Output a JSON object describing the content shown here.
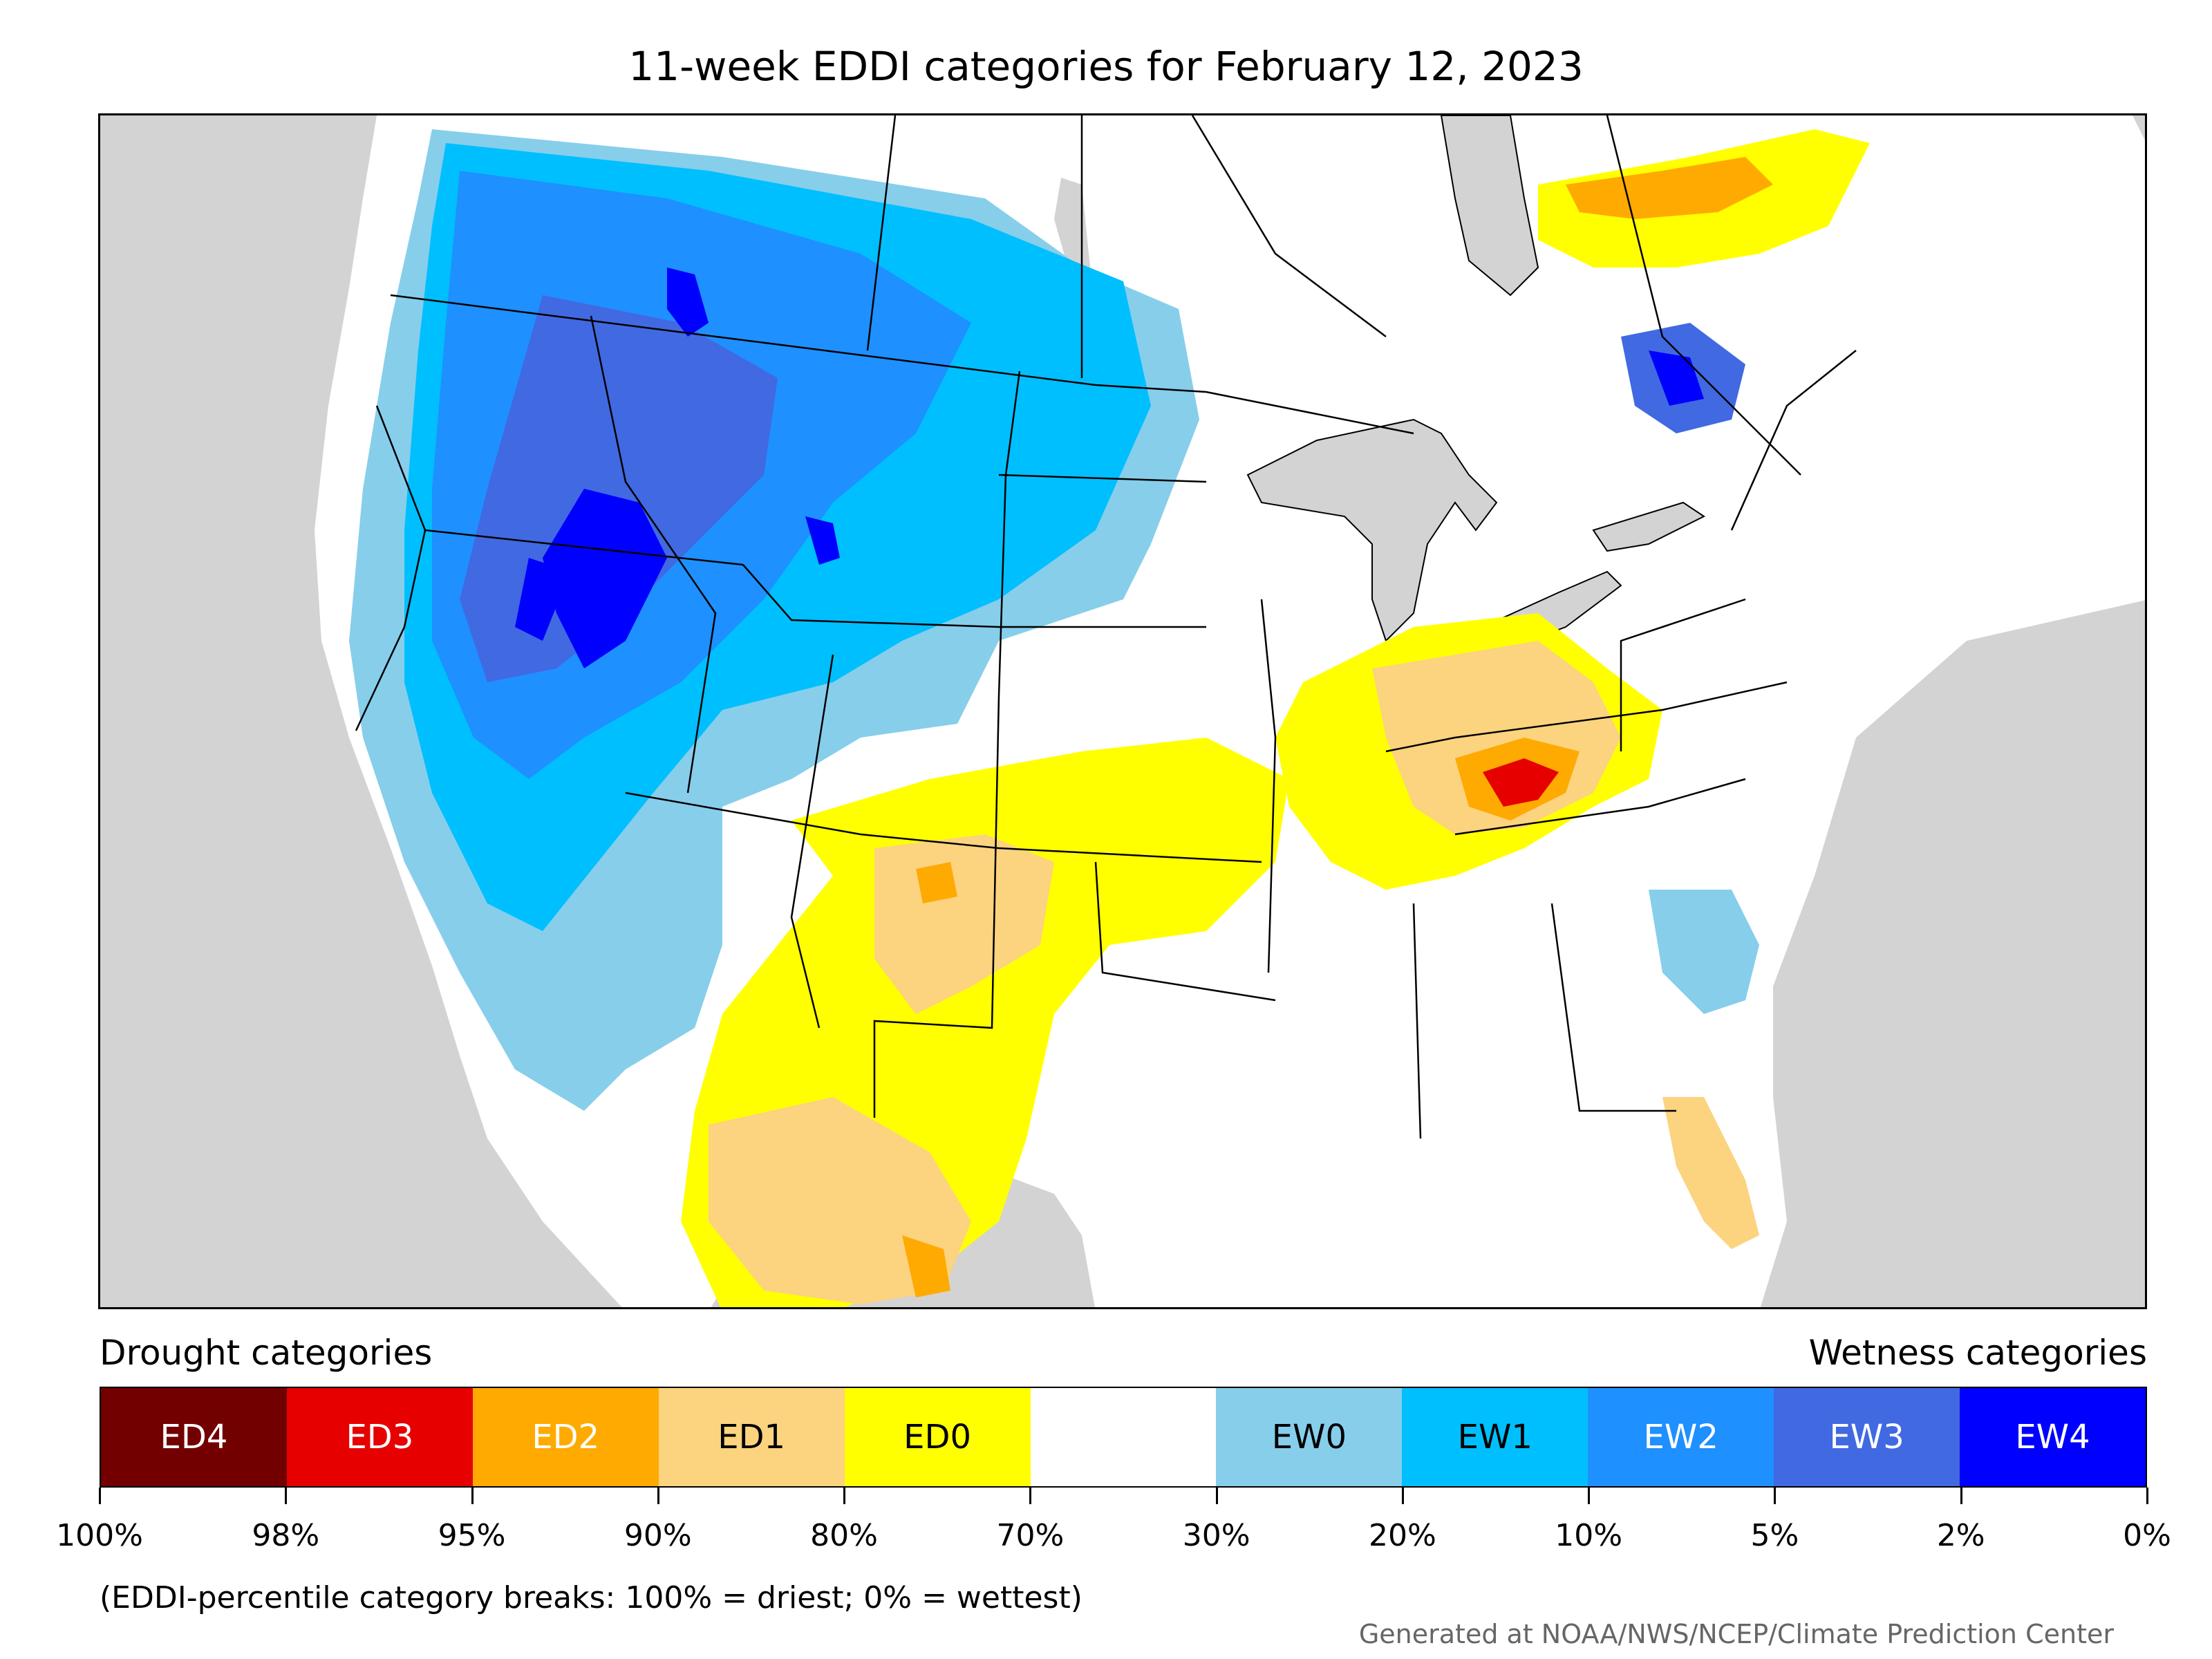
{
  "title": "11-week EDDI categories for February 12, 2023",
  "legend": {
    "drought_header": "Drought categories",
    "wetness_header": "Wetness categories",
    "categories": [
      {
        "label": "ED4",
        "color": "#730000",
        "text_color": "#ffffff"
      },
      {
        "label": "ED3",
        "color": "#e60000",
        "text_color": "#ffffff"
      },
      {
        "label": "ED2",
        "color": "#ffaa00",
        "text_color": "#ffffff"
      },
      {
        "label": "ED1",
        "color": "#fcd37f",
        "text_color": "#000000"
      },
      {
        "label": "ED0",
        "color": "#ffff00",
        "text_color": "#000000"
      },
      {
        "label": "",
        "color": "#ffffff",
        "text_color": "#000000"
      },
      {
        "label": "EW0",
        "color": "#87ceeb",
        "text_color": "#000000"
      },
      {
        "label": "EW1",
        "color": "#00bfff",
        "text_color": "#000000"
      },
      {
        "label": "EW2",
        "color": "#1e90ff",
        "text_color": "#ffffff"
      },
      {
        "label": "EW3",
        "color": "#4169e1",
        "text_color": "#ffffff"
      },
      {
        "label": "EW4",
        "color": "#0000ff",
        "text_color": "#ffffff"
      }
    ],
    "tick_labels": [
      "100%",
      "98%",
      "95%",
      "90%",
      "80%",
      "70%",
      "30%",
      "20%",
      "10%",
      "5%",
      "2%",
      "0%"
    ]
  },
  "footnote": "(EDDI-percentile category breaks: 100% = driest; 0% = wettest)",
  "credit": "Generated at NOAA/NWS/NCEP/Climate Prediction Center",
  "map": {
    "background_color": "#d3d3d3",
    "land_color": "#ffffff",
    "border_color": "#000000"
  }
}
